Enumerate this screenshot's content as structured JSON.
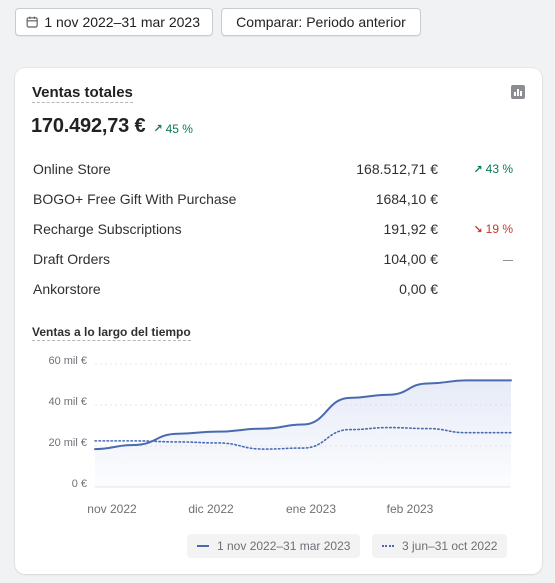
{
  "toolbar": {
    "date_range_label": "1 nov 2022–31 mar 2023",
    "compare_label": "Comparar: Periodo anterior"
  },
  "card": {
    "title": "Ventas totales",
    "total": "170.492,73 €",
    "total_change": "45 %",
    "total_change_direction": "up",
    "rows": [
      {
        "name": "Online Store",
        "amount": "168.512,71 €",
        "delta": "43 %",
        "direction": "up"
      },
      {
        "name": "BOGO+ Free Gift With Purchase",
        "amount": "1684,10 €",
        "delta": "",
        "direction": "none"
      },
      {
        "name": "Recharge Subscriptions",
        "amount": "191,92 €",
        "delta": "19 %",
        "direction": "down"
      },
      {
        "name": "Draft Orders",
        "amount": "104,00 €",
        "delta": "",
        "direction": "dash"
      },
      {
        "name": "Ankorstore",
        "amount": "0,00 €",
        "delta": "",
        "direction": "none"
      }
    ],
    "icons": {
      "chart": "bar-chart-icon",
      "calendar": "calendar-icon"
    }
  },
  "colors": {
    "up": "#0c7a4f",
    "down": "#c4382a",
    "current_series": "#4a6ab0",
    "previous_series": "#4a6ab0"
  },
  "chart_data": {
    "type": "line",
    "title": "Ventas a lo largo del tiempo",
    "y_ticks": [
      "60 mil €",
      "40 mil €",
      "20 mil €",
      "0 €"
    ],
    "x_ticks": [
      "nov 2022",
      "dic 2022",
      "ene 2023",
      "feb 2023"
    ],
    "ylim": [
      0,
      60000
    ],
    "grid": true,
    "legend_placement": "bottom-right",
    "series": [
      {
        "name": "1 nov 2022–31 mar 2023",
        "style": "solid",
        "values": [
          {
            "x": "2022-11-01",
            "y": 18500
          },
          {
            "x": "2022-11-15",
            "y": 20500
          },
          {
            "x": "2022-12-01",
            "y": 26000
          },
          {
            "x": "2022-12-15",
            "y": 27000
          },
          {
            "x": "2023-01-01",
            "y": 28500
          },
          {
            "x": "2023-01-15",
            "y": 30500
          },
          {
            "x": "2023-02-01",
            "y": 43500
          },
          {
            "x": "2023-02-15",
            "y": 45000
          },
          {
            "x": "2023-03-01",
            "y": 50500
          },
          {
            "x": "2023-03-15",
            "y": 52000
          },
          {
            "x": "2023-03-31",
            "y": 52000
          }
        ]
      },
      {
        "name": "3 jun–31 oct 2022",
        "style": "dotted",
        "values": [
          {
            "x": "2022-11-01",
            "y": 22500
          },
          {
            "x": "2022-11-15",
            "y": 22500
          },
          {
            "x": "2022-12-01",
            "y": 22000
          },
          {
            "x": "2022-12-15",
            "y": 21500
          },
          {
            "x": "2023-01-01",
            "y": 18500
          },
          {
            "x": "2023-01-15",
            "y": 19000
          },
          {
            "x": "2023-02-01",
            "y": 28000
          },
          {
            "x": "2023-02-15",
            "y": 29000
          },
          {
            "x": "2023-03-01",
            "y": 28500
          },
          {
            "x": "2023-03-15",
            "y": 26500
          },
          {
            "x": "2023-03-31",
            "y": 26500
          }
        ]
      }
    ]
  }
}
